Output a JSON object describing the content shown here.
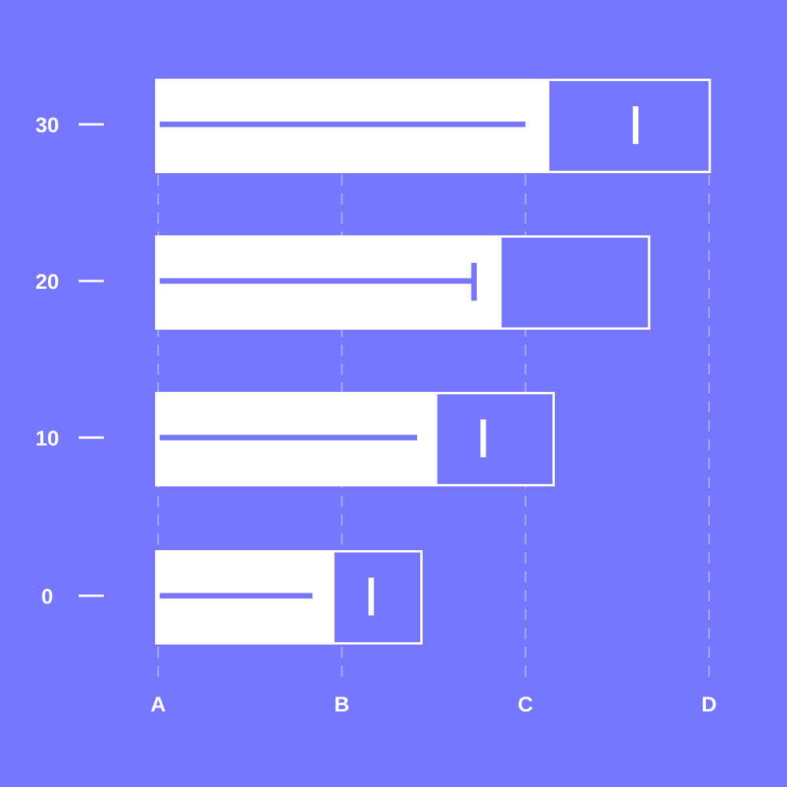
{
  "chart_data": {
    "type": "bar",
    "subtype": "bullet",
    "orientation": "horizontal",
    "title": "",
    "xlabel": "",
    "ylabel": "",
    "categories": [
      "0",
      "10",
      "20",
      "30"
    ],
    "x_ticks": [
      "A",
      "B",
      "C",
      "D"
    ],
    "xlim": [
      0,
      3
    ],
    "grid": "vertical-dashed",
    "series": [
      {
        "role": "range",
        "values": [
          1.44,
          2.16,
          2.68,
          3.01
        ]
      },
      {
        "role": "band-start",
        "values": [
          0.96,
          1.52,
          1.87,
          2.13
        ]
      },
      {
        "role": "measure",
        "values": [
          0.84,
          1.41,
          1.72,
          2.0
        ]
      },
      {
        "role": "target",
        "values": [
          1.16,
          1.77,
          1.72,
          2.6
        ]
      }
    ],
    "colors": {
      "background": "#7777fd",
      "bar": "#ffffff",
      "measure": "#7777fd",
      "grid": "#a8a8fd",
      "text": "#ffffff"
    }
  }
}
